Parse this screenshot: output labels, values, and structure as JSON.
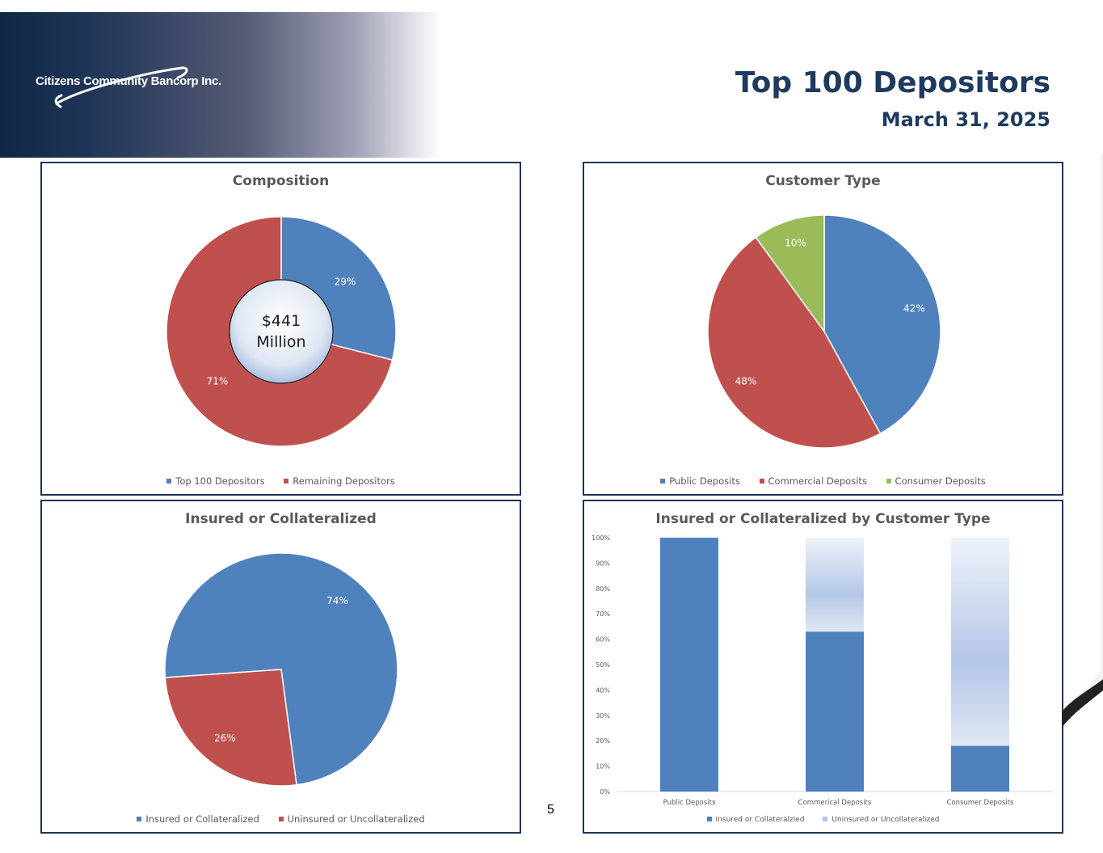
{
  "header": {
    "logo_text": "Citizens Community Bancorp Inc.",
    "title": "Top 100 Depositors",
    "subtitle": "March 31, 2025"
  },
  "page_number": "5",
  "colors": {
    "blue": "#4f81bd",
    "red": "#c0504d",
    "green": "#9bbb59",
    "light_blue": "#b4c7e7",
    "navy": "#1f3557"
  },
  "chart_data": [
    {
      "id": "composition",
      "type": "pie",
      "donut": true,
      "title": "Composition",
      "center_label": [
        "$441",
        "Million"
      ],
      "slices": [
        {
          "name": "Top 100 Depositors",
          "value": 29,
          "label": "29%",
          "color": "#4f81bd"
        },
        {
          "name": "Remaining Depositors",
          "value": 71,
          "label": "71%",
          "color": "#c0504d"
        }
      ],
      "legend": "bottom"
    },
    {
      "id": "customer",
      "type": "pie",
      "title": "Customer Type",
      "slices": [
        {
          "name": "Public Deposits",
          "value": 42,
          "label": "42%",
          "color": "#4f81bd"
        },
        {
          "name": "Commercial Deposits",
          "value": 48,
          "label": "48%",
          "color": "#c0504d"
        },
        {
          "name": "Consumer Deposits",
          "value": 10,
          "label": "10%",
          "color": "#9bbb59"
        }
      ],
      "legend": "bottom"
    },
    {
      "id": "insured",
      "type": "pie",
      "title": "Insured or Collateralized",
      "slices": [
        {
          "name": "Insured or Collateralized",
          "value": 74,
          "label": "74%",
          "color": "#4f81bd"
        },
        {
          "name": "Uninsured or Uncollateralized",
          "value": 26,
          "label": "26%",
          "color": "#c0504d"
        }
      ],
      "legend": "bottom"
    },
    {
      "id": "bycustomer",
      "type": "bar",
      "stacked": true,
      "title": "Insured or Collateralized by Customer Type",
      "categories": [
        "Public Deposits",
        "Commerical Deposits",
        "Consumer Deposits"
      ],
      "series": [
        {
          "name": "Insured or Collateralzied",
          "values": [
            100,
            63,
            18
          ],
          "color": "#4f81bd"
        },
        {
          "name": "Uninsured or Uncollateralized",
          "values": [
            0,
            37,
            82
          ],
          "color": "#b4c7e7"
        }
      ],
      "ylim": [
        0,
        100
      ],
      "yticks": [
        "0%",
        "10%",
        "20%",
        "30%",
        "40%",
        "50%",
        "60%",
        "70%",
        "80%",
        "90%",
        "100%"
      ],
      "legend": "bottom"
    }
  ]
}
